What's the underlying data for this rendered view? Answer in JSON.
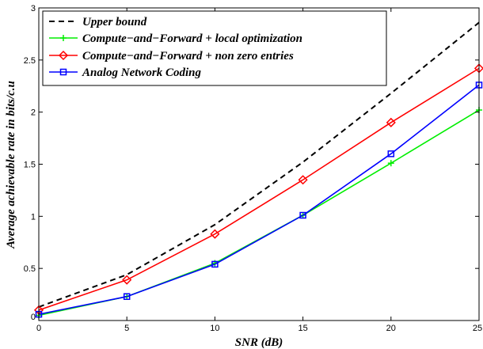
{
  "chart_data": {
    "type": "line",
    "xlabel": "SNR (dB)",
    "ylabel": "Average achievable rate in bits/c.u",
    "xlim": [
      0,
      25
    ],
    "ylim": [
      0,
      3
    ],
    "x_ticks": [
      "0",
      "5",
      "10",
      "15",
      "20",
      "25"
    ],
    "y_ticks": [
      "0",
      "0.5",
      "1",
      "1.5",
      "2",
      "2.5",
      "3"
    ],
    "grid": false,
    "legend_position": "top-left",
    "x": [
      0,
      5,
      10,
      15,
      20,
      25
    ],
    "series": [
      {
        "name": "Upper bound",
        "values": [
          0.13,
          0.44,
          0.92,
          1.52,
          2.18,
          2.86
        ],
        "color": "#000000",
        "line_style": "dashed",
        "marker": "none"
      },
      {
        "name": "Compute−and−Forward + local optimization",
        "values": [
          0.05,
          0.23,
          0.55,
          1.01,
          1.51,
          2.02
        ],
        "color": "#00ee00",
        "line_style": "solid",
        "marker": "plus"
      },
      {
        "name": "Compute−and−Forward + non zero entries",
        "values": [
          0.1,
          0.39,
          0.83,
          1.35,
          1.9,
          2.42
        ],
        "color": "#ff0000",
        "line_style": "solid",
        "marker": "diamond"
      },
      {
        "name": "Analog Network Coding",
        "values": [
          0.06,
          0.23,
          0.54,
          1.01,
          1.6,
          2.26
        ],
        "color": "#0000ff",
        "line_style": "solid",
        "marker": "square"
      }
    ]
  }
}
